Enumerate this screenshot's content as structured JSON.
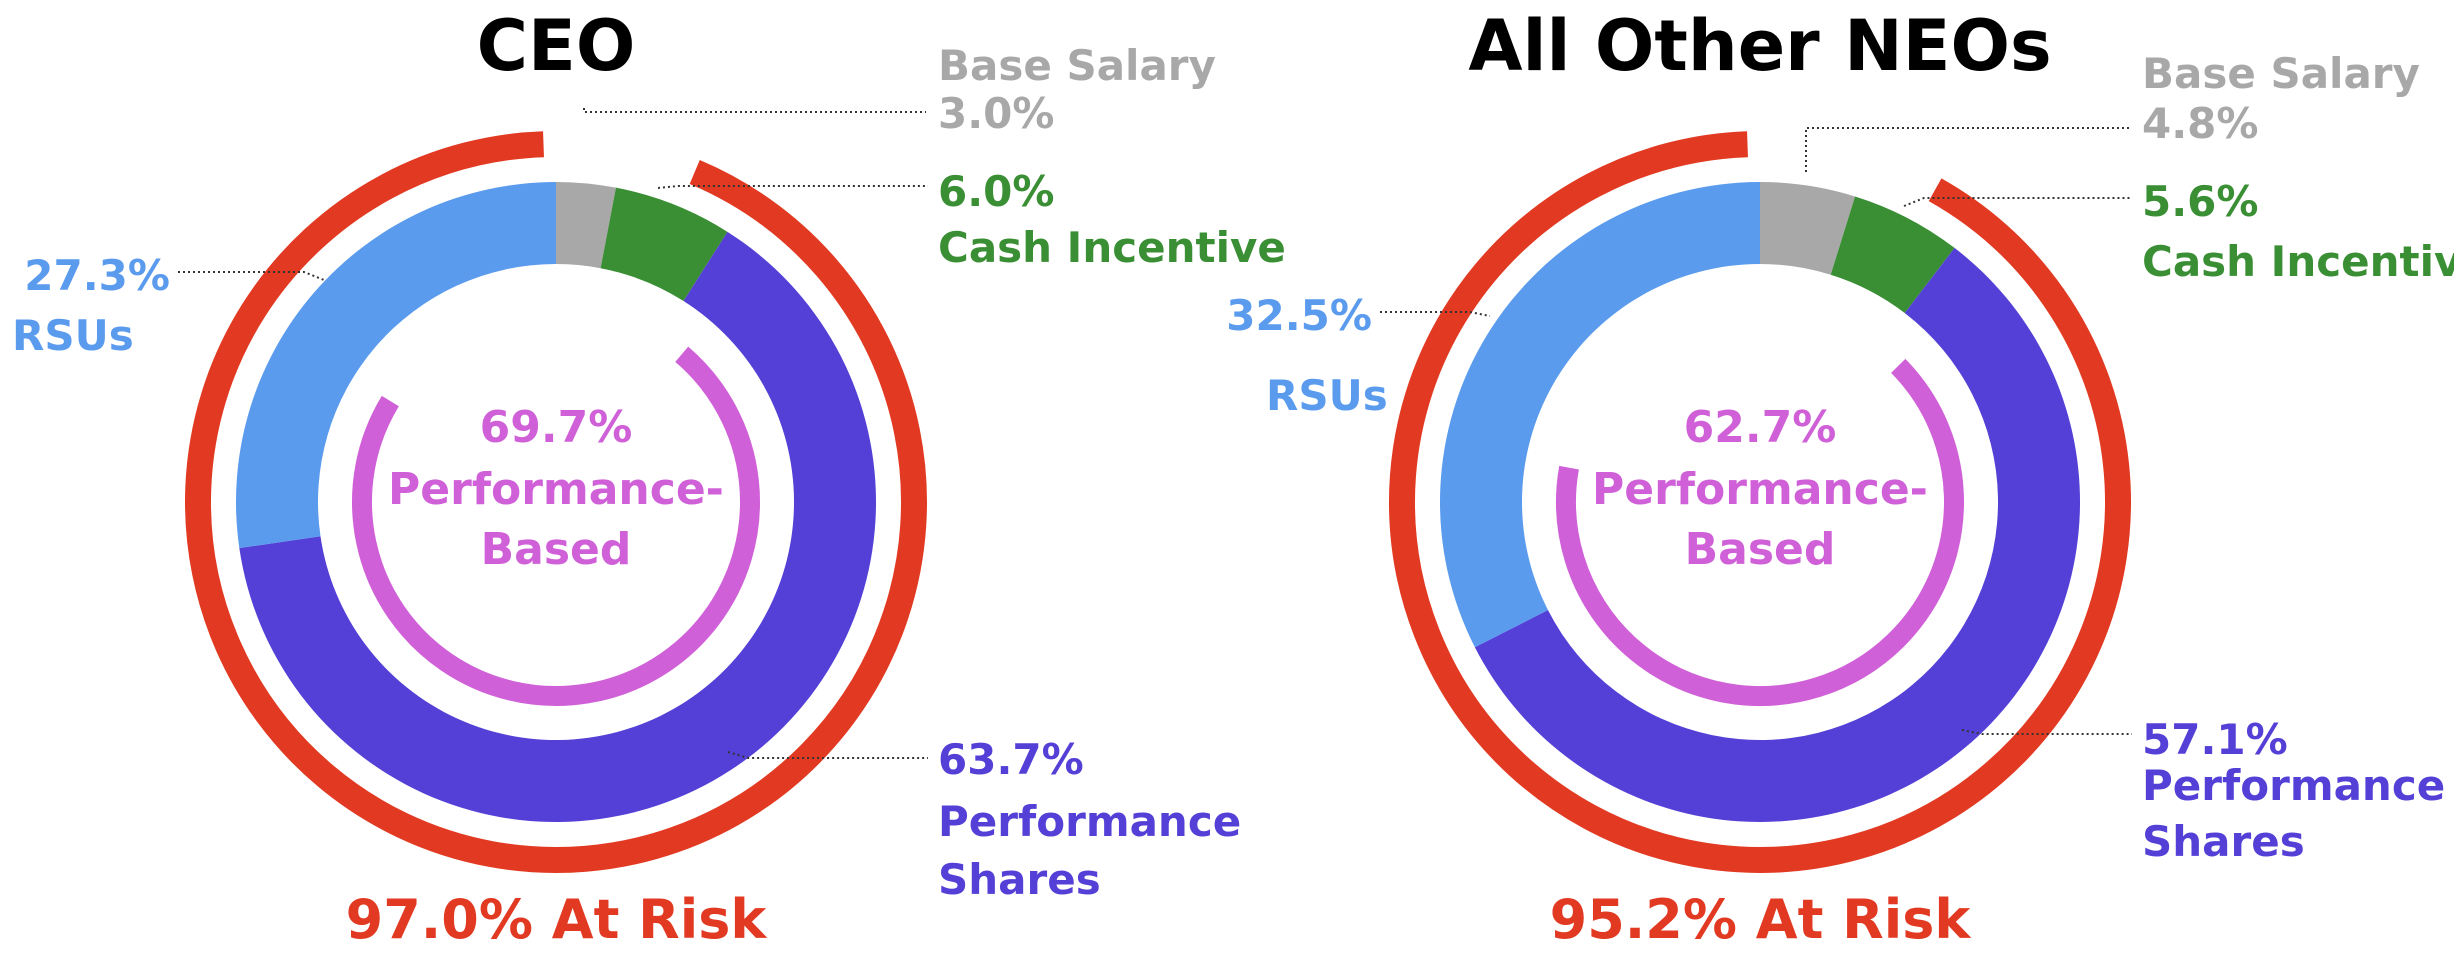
{
  "chart_data": [
    {
      "type": "pie",
      "title": "CEO",
      "at_risk_label": "97.0% At Risk",
      "at_risk_value": 97.0,
      "performance_based": {
        "pct_label": "69.7%",
        "line1": "Performance-",
        "line2": "Based",
        "value": 69.7
      },
      "slices": [
        {
          "key": "base",
          "name_lines": [
            "Base Salary"
          ],
          "pct_label": "3.0%",
          "value": 3.0,
          "color": "#A8A8A8"
        },
        {
          "key": "cash",
          "name_lines": [
            "Cash Incentive"
          ],
          "pct_label": "6.0%",
          "value": 6.0,
          "color": "#3A8F35"
        },
        {
          "key": "perf",
          "name_lines": [
            "Performance",
            "Shares"
          ],
          "pct_label": "63.7%",
          "value": 63.7,
          "color": "#5440D6"
        },
        {
          "key": "rsu",
          "name_lines": [
            "RSUs"
          ],
          "pct_label": "27.3%",
          "value": 27.3,
          "color": "#5A9BEE"
        }
      ]
    },
    {
      "type": "pie",
      "title": "All Other NEOs",
      "at_risk_label": "95.2% At Risk",
      "at_risk_value": 95.2,
      "performance_based": {
        "pct_label": "62.7%",
        "line1": "Performance-",
        "line2": "Based",
        "value": 62.7
      },
      "slices": [
        {
          "key": "base",
          "name_lines": [
            "Base Salary"
          ],
          "pct_label": "4.8%",
          "value": 4.8,
          "color": "#A8A8A8"
        },
        {
          "key": "cash",
          "name_lines": [
            "Cash Incentive"
          ],
          "pct_label": "5.6%",
          "value": 5.6,
          "color": "#3A8F35"
        },
        {
          "key": "perf",
          "name_lines": [
            "Performance",
            "Shares"
          ],
          "pct_label": "57.1%",
          "value": 57.1,
          "color": "#5440D6"
        },
        {
          "key": "rsu",
          "name_lines": [
            "RSUs"
          ],
          "pct_label": "32.5%",
          "value": 32.5,
          "color": "#5A9BEE"
        }
      ]
    }
  ],
  "colors": {
    "at_risk": "#E23A22",
    "performance_based": "#D060D8",
    "leader": "#333333"
  }
}
